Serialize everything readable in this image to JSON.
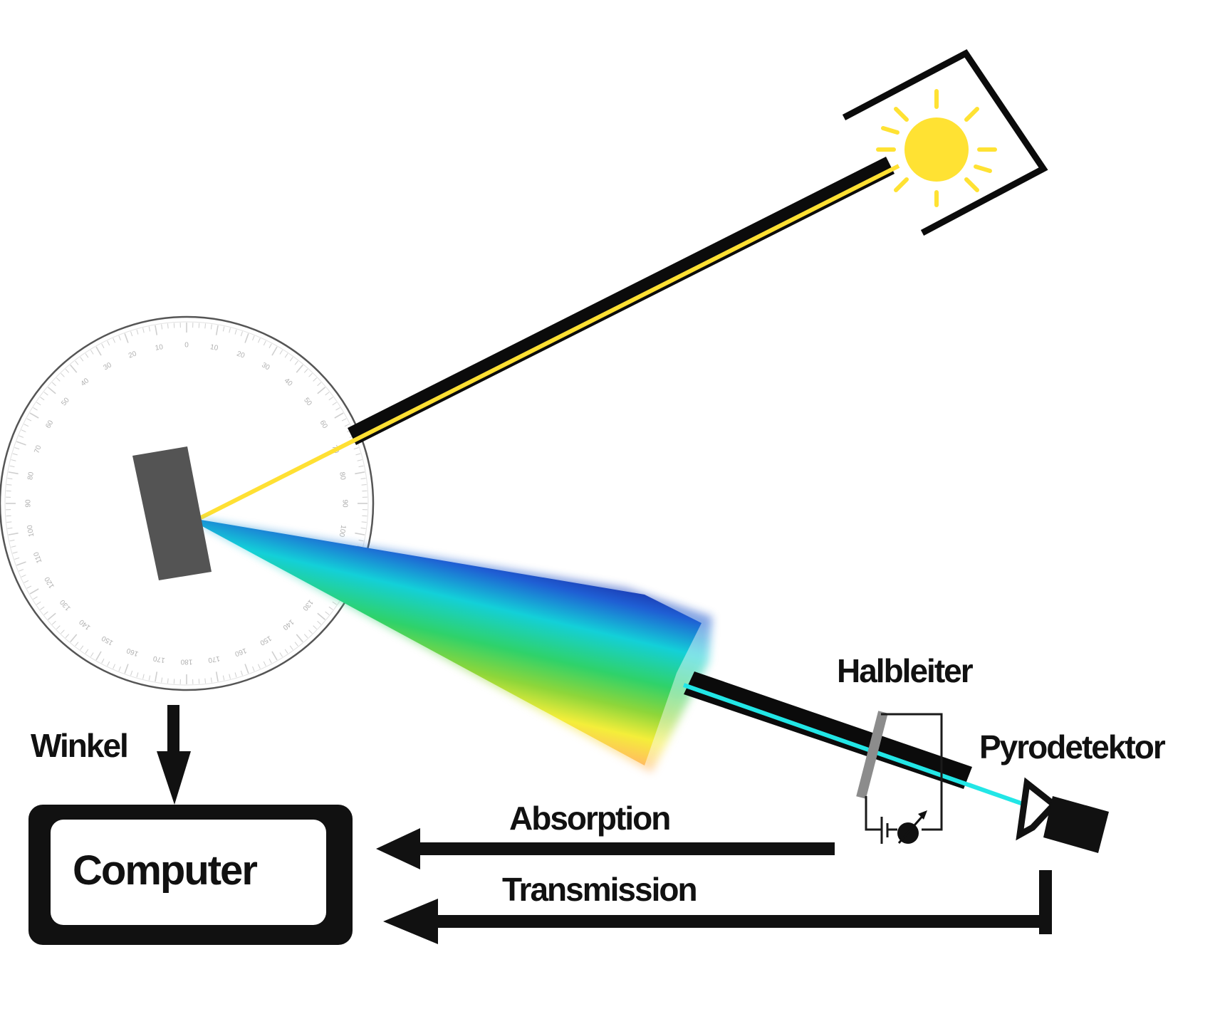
{
  "labels": {
    "halbleiter": "Halbleiter",
    "pyrodetektor": "Pyrodetektor",
    "winkel": "Winkel",
    "computer": "Computer",
    "absorption": "Absorption",
    "transmission": "Transmission"
  },
  "protractor_ticks": [
    "0",
    "10",
    "20",
    "30",
    "40",
    "50",
    "60",
    "70",
    "80",
    "90",
    "100",
    "110",
    "120",
    "130",
    "140",
    "150",
    "160",
    "170",
    "180",
    "170",
    "160",
    "150",
    "140",
    "130",
    "120",
    "110",
    "100",
    "90",
    "80",
    "70",
    "60",
    "50",
    "40",
    "30",
    "20",
    "10"
  ],
  "colors": {
    "beam_yellow": "#ffe033",
    "sun": "#ffe233",
    "sample": "#545454",
    "cyan_beam": "#22e6e6",
    "tube": "#0b0b0b"
  },
  "icons": {
    "light_source": "sun-icon",
    "detector": "pyrodetector-icon",
    "meter": "ammeter-icon"
  }
}
